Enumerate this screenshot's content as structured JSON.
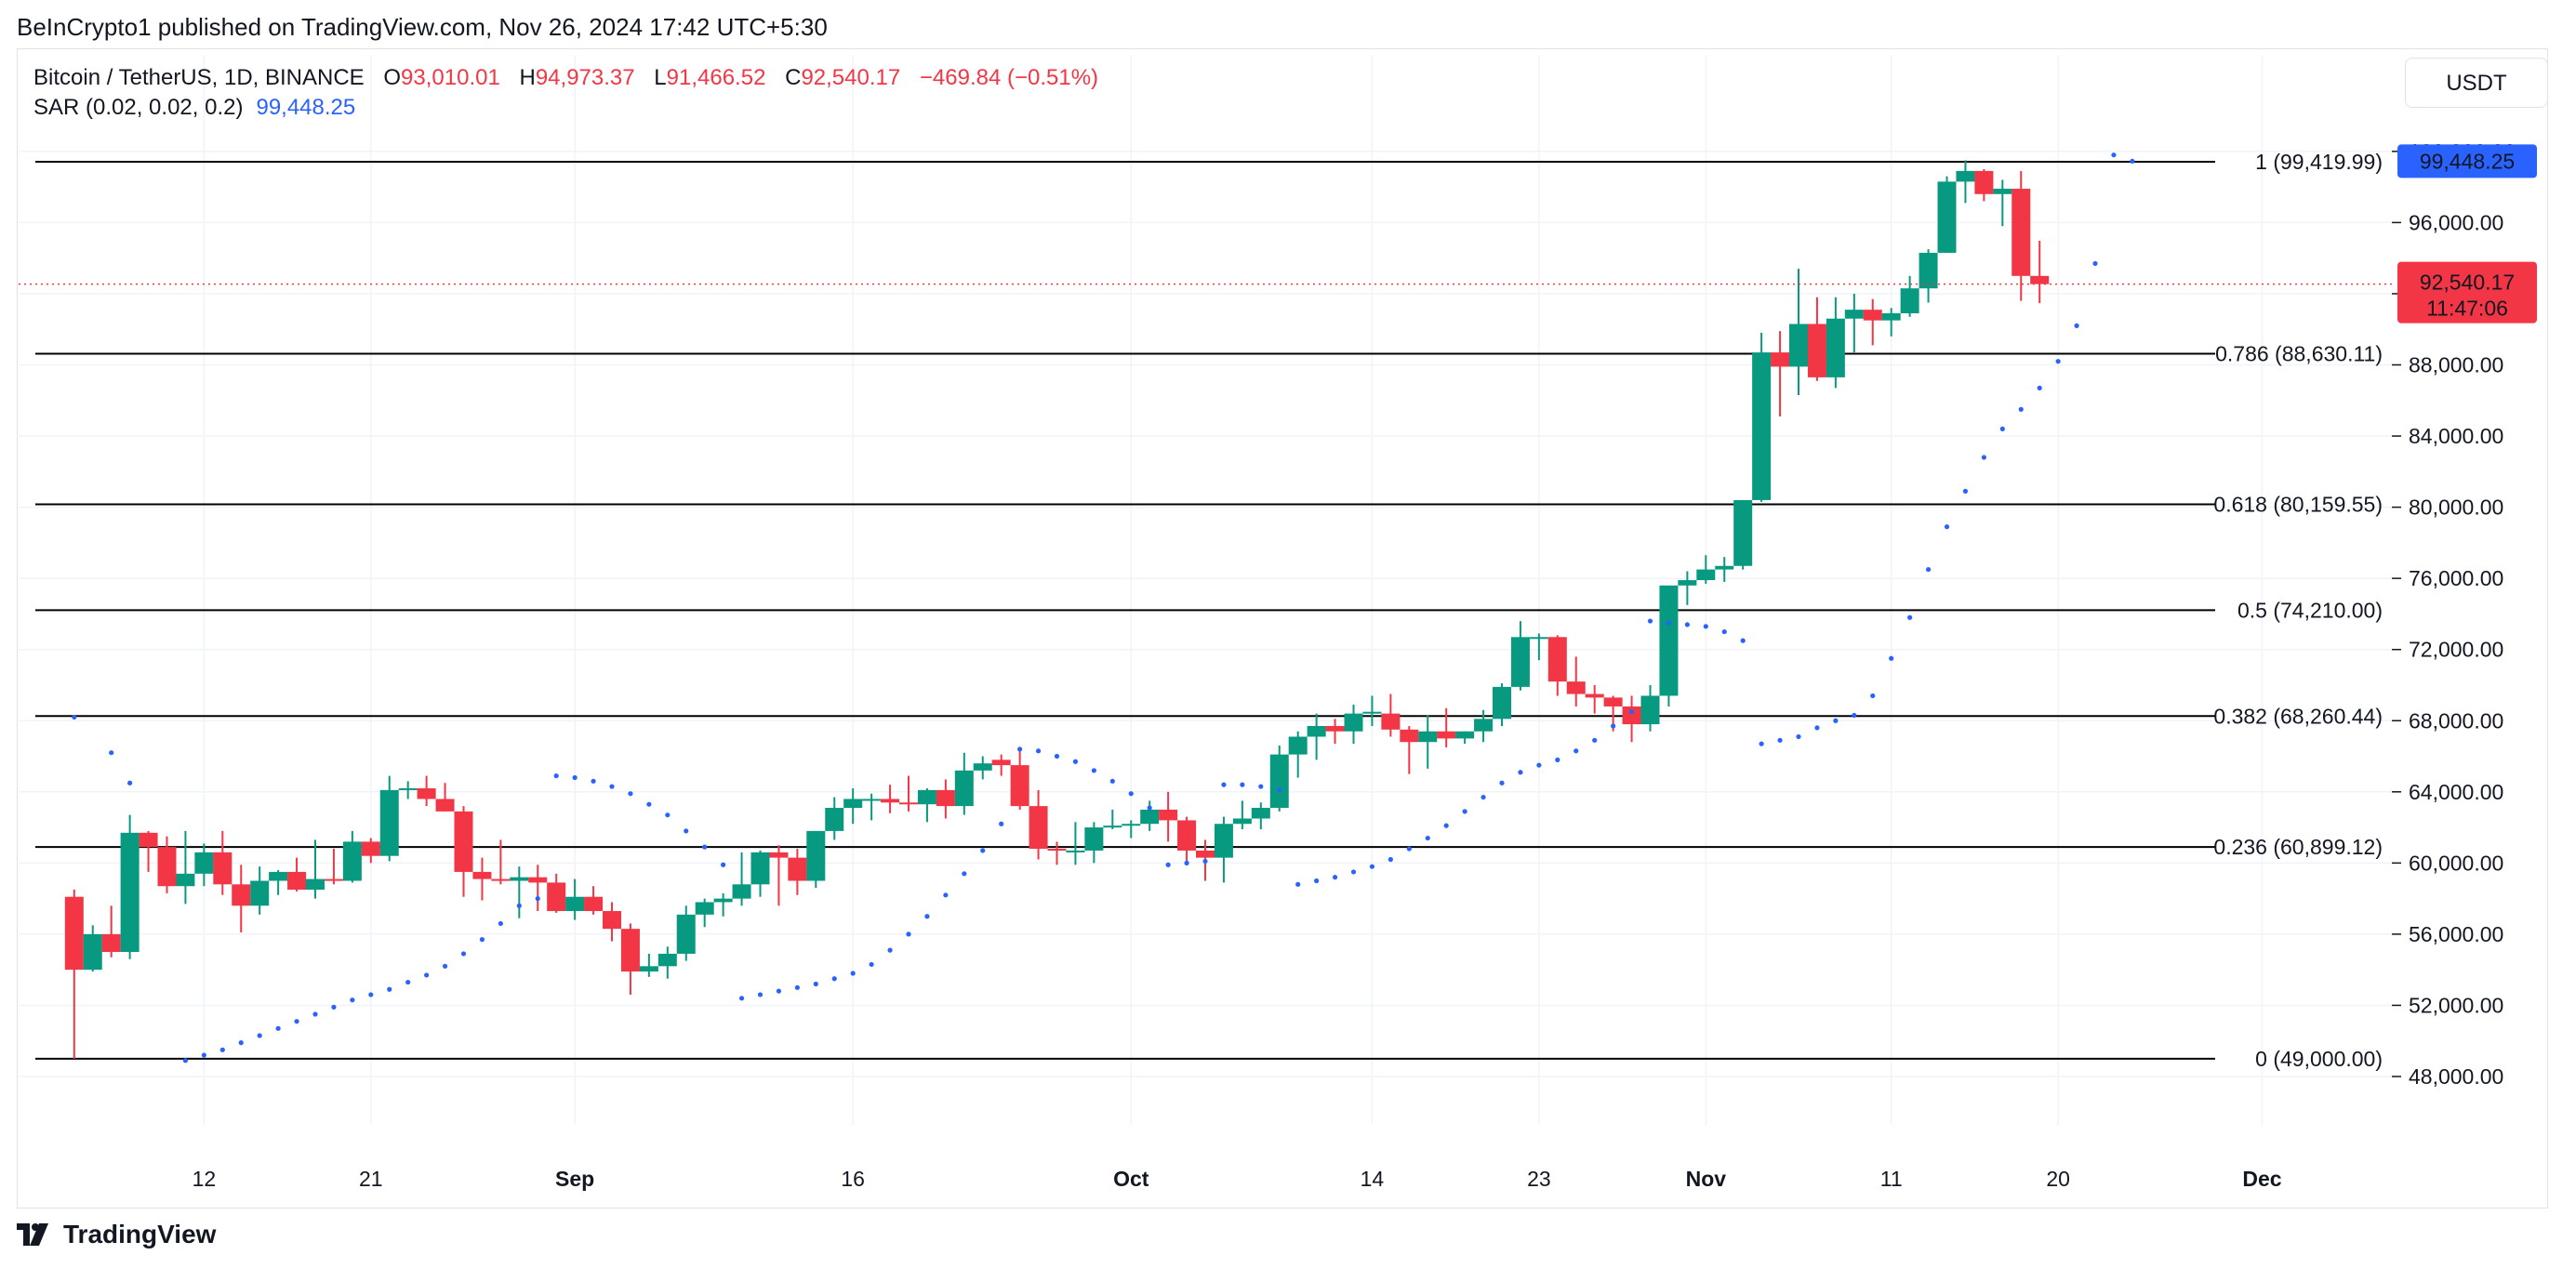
{
  "header": {
    "published_by": "BeInCrypto1 published on TradingView.com, Nov 26, 2024 17:42 UTC+5:30"
  },
  "legend": {
    "symbol": "Bitcoin / TetherUS, 1D, BINANCE",
    "o_label": "O",
    "o_value": "93,010.01",
    "h_label": "H",
    "h_value": "94,973.37",
    "l_label": "L",
    "l_value": "91,466.52",
    "c_label": "C",
    "c_value": "92,540.17",
    "change": "−469.84 (−0.51%)",
    "sar_label": "SAR (0.02, 0.02, 0.2)",
    "sar_value": "99,448.25"
  },
  "toolbar": {
    "currency": "USDT"
  },
  "footer": {
    "logo_text": "TradingView"
  },
  "colors": {
    "up": "#089981",
    "down": "#f23645",
    "sar": "#2962ff",
    "grid": "#f0f3fa",
    "fib_line": "#000000",
    "price_line": "#f23645"
  },
  "chart_data": {
    "type": "candlestick",
    "title": "Bitcoin / TetherUS, 1D, BINANCE",
    "ylim": [
      44000,
      101000
    ],
    "y_ticks": [
      "48,000.00",
      "52,000.00",
      "56,000.00",
      "60,000.00",
      "64,000.00",
      "68,000.00",
      "72,000.00",
      "76,000.00",
      "80,000.00",
      "84,000.00",
      "88,000.00",
      "92,000.00",
      "96,000.00",
      "100,000.00"
    ],
    "x_ticks": [
      {
        "label": "12",
        "date": "2024-08-12",
        "bold": false
      },
      {
        "label": "21",
        "date": "2024-08-21",
        "bold": false
      },
      {
        "label": "Sep",
        "date": "2024-09-01",
        "bold": true
      },
      {
        "label": "16",
        "date": "2024-09-16",
        "bold": false
      },
      {
        "label": "Oct",
        "date": "2024-10-01",
        "bold": true
      },
      {
        "label": "14",
        "date": "2024-10-14",
        "bold": false
      },
      {
        "label": "23",
        "date": "2024-10-23",
        "bold": false
      },
      {
        "label": "Nov",
        "date": "2024-11-01",
        "bold": true
      },
      {
        "label": "11",
        "date": "2024-11-11",
        "bold": false
      },
      {
        "label": "20",
        "date": "2024-11-20",
        "bold": false
      },
      {
        "label": "Dec",
        "date": "2024-12-01",
        "bold": true
      }
    ],
    "x_range": [
      "2024-08-02",
      "2024-12-08"
    ],
    "first_date": "2024-08-05",
    "fib_levels": [
      {
        "label": "1 (99,419.99)",
        "value": 99419.99
      },
      {
        "label": "0.786 (88,630.11)",
        "value": 88630.11
      },
      {
        "label": "0.618 (80,159.55)",
        "value": 80159.55
      },
      {
        "label": "0.5 (74,210.00)",
        "value": 74210.0
      },
      {
        "label": "0.382 (68,260.44)",
        "value": 68260.44
      },
      {
        "label": "0.236 (60,899.12)",
        "value": 60899.12
      },
      {
        "label": "0 (49,000.00)",
        "value": 49000.0
      }
    ],
    "last_price": {
      "value": 92540.17,
      "label": "92,540.17",
      "countdown": "11:47:06"
    },
    "sar_badge": {
      "value": 99448.25,
      "label": "99,448.25"
    },
    "ohlc": [
      [
        58100,
        58500,
        49000,
        54000
      ],
      [
        54000,
        56500,
        53900,
        56000
      ],
      [
        56000,
        57600,
        54700,
        55000
      ],
      [
        55000,
        62700,
        54600,
        61700
      ],
      [
        61700,
        61800,
        59500,
        60900
      ],
      [
        60900,
        61500,
        58300,
        58700
      ],
      [
        58700,
        61800,
        57700,
        59400
      ],
      [
        59400,
        61100,
        58700,
        60600
      ],
      [
        60600,
        61800,
        58200,
        58800
      ],
      [
        58800,
        59900,
        56100,
        57600
      ],
      [
        57600,
        59800,
        57100,
        59000
      ],
      [
        59000,
        59600,
        58200,
        59500
      ],
      [
        59500,
        60300,
        58400,
        58500
      ],
      [
        58500,
        61300,
        58000,
        59100
      ],
      [
        59100,
        60800,
        58800,
        59000
      ],
      [
        59000,
        61800,
        58900,
        61200
      ],
      [
        61200,
        61400,
        60000,
        60400
      ],
      [
        60400,
        64900,
        60100,
        64100
      ],
      [
        64100,
        64600,
        63600,
        64200
      ],
      [
        64200,
        64900,
        63200,
        63600
      ],
      [
        63600,
        64500,
        62900,
        62900
      ],
      [
        62900,
        63200,
        58100,
        59500
      ],
      [
        59500,
        60300,
        57900,
        59100
      ],
      [
        59100,
        61300,
        58800,
        59000
      ],
      [
        59000,
        59800,
        56900,
        59200
      ],
      [
        59200,
        59900,
        57300,
        58900
      ],
      [
        58900,
        59400,
        57200,
        57300
      ],
      [
        57300,
        59100,
        56800,
        58100
      ],
      [
        58100,
        58700,
        57100,
        57300
      ],
      [
        57300,
        57800,
        55600,
        56300
      ],
      [
        56300,
        56600,
        52600,
        53900
      ],
      [
        53900,
        54900,
        53600,
        54200
      ],
      [
        54200,
        55300,
        53500,
        54900
      ],
      [
        54900,
        57600,
        54500,
        57100
      ],
      [
        57100,
        58000,
        56400,
        57800
      ],
      [
        57800,
        58300,
        57000,
        58000
      ],
      [
        58000,
        60600,
        57600,
        58800
      ],
      [
        58800,
        60700,
        58100,
        60600
      ],
      [
        60600,
        61000,
        57600,
        60300
      ],
      [
        60300,
        60800,
        58200,
        59000
      ],
      [
        59000,
        61500,
        58600,
        61800
      ],
      [
        61800,
        63700,
        61300,
        63100
      ],
      [
        63100,
        64200,
        62200,
        63600
      ],
      [
        63600,
        63900,
        62400,
        63600
      ],
      [
        63600,
        64400,
        62800,
        63400
      ],
      [
        63400,
        64900,
        62900,
        63300
      ],
      [
        63300,
        64200,
        62300,
        64100
      ],
      [
        64100,
        64700,
        62500,
        63200
      ],
      [
        63200,
        66200,
        62700,
        65200
      ],
      [
        65200,
        66000,
        64700,
        65600
      ],
      [
        65800,
        66100,
        64900,
        65500
      ],
      [
        65500,
        66500,
        63000,
        63200
      ],
      [
        63200,
        64100,
        60200,
        60800
      ],
      [
        60800,
        61200,
        59900,
        60700
      ],
      [
        60700,
        62300,
        59900,
        60700
      ],
      [
        60700,
        62300,
        60000,
        62000
      ],
      [
        62000,
        63000,
        61900,
        62100
      ],
      [
        62100,
        62400,
        61400,
        62200
      ],
      [
        62200,
        63500,
        61800,
        63000
      ],
      [
        63000,
        64000,
        61200,
        62400
      ],
      [
        62400,
        62600,
        60100,
        60700
      ],
      [
        60700,
        61300,
        59000,
        60300
      ],
      [
        60300,
        62600,
        58900,
        62200
      ],
      [
        62200,
        63500,
        61900,
        62500
      ],
      [
        62500,
        63400,
        61900,
        63100
      ],
      [
        63100,
        66600,
        62900,
        66100
      ],
      [
        66100,
        67400,
        64800,
        67100
      ],
      [
        67100,
        68400,
        65800,
        67700
      ],
      [
        67700,
        68100,
        66700,
        67400
      ],
      [
        67400,
        68900,
        66700,
        68400
      ],
      [
        68400,
        69400,
        67700,
        68500
      ],
      [
        68400,
        69500,
        67100,
        67500
      ],
      [
        67500,
        67700,
        65000,
        66800
      ],
      [
        66800,
        68300,
        65300,
        67400
      ],
      [
        67400,
        68700,
        66500,
        67000
      ],
      [
        67000,
        67400,
        66700,
        67400
      ],
      [
        67400,
        68600,
        66800,
        68100
      ],
      [
        68100,
        70100,
        67700,
        69900
      ],
      [
        69900,
        73600,
        69700,
        72700
      ],
      [
        72700,
        72900,
        71400,
        72700
      ],
      [
        72700,
        72800,
        69400,
        70200
      ],
      [
        70200,
        71600,
        68800,
        69500
      ],
      [
        69500,
        70000,
        68400,
        69300
      ],
      [
        69300,
        69400,
        67400,
        68800
      ],
      [
        68800,
        69400,
        66800,
        67800
      ],
      [
        67800,
        70000,
        67400,
        69400
      ],
      [
        69400,
        75500,
        68800,
        75600
      ],
      [
        75600,
        76400,
        74500,
        75900
      ],
      [
        75900,
        77300,
        75700,
        76500
      ],
      [
        76500,
        77200,
        75800,
        76700
      ],
      [
        76700,
        80000,
        76500,
        80400
      ],
      [
        80400,
        89800,
        80300,
        88700
      ],
      [
        88700,
        89900,
        85100,
        87900
      ],
      [
        87900,
        93400,
        86300,
        90300
      ],
      [
        90300,
        91800,
        87100,
        87300
      ],
      [
        87300,
        91800,
        86700,
        90600
      ],
      [
        90600,
        92000,
        88700,
        91100
      ],
      [
        91100,
        91700,
        89100,
        90500
      ],
      [
        90500,
        91200,
        89600,
        90900
      ],
      [
        90900,
        93000,
        90700,
        92300
      ],
      [
        92300,
        94500,
        91500,
        94300
      ],
      [
        94300,
        98600,
        94300,
        98300
      ],
      [
        98300,
        99500,
        97100,
        98900
      ],
      [
        98900,
        99000,
        97200,
        97600
      ],
      [
        97600,
        98400,
        95800,
        97900
      ],
      [
        97900,
        98900,
        91600,
        93000
      ],
      [
        93000,
        94973.37,
        91466.52,
        92540.17
      ]
    ],
    "sar": [
      [
        0,
        68200
      ],
      [
        2,
        66200
      ],
      [
        3,
        64500
      ],
      [
        6,
        48900
      ],
      [
        7,
        49200
      ],
      [
        8,
        49500
      ],
      [
        9,
        49900
      ],
      [
        10,
        50300
      ],
      [
        11,
        50700
      ],
      [
        12,
        51100
      ],
      [
        13,
        51500
      ],
      [
        14,
        51900
      ],
      [
        15,
        52300
      ],
      [
        16,
        52600
      ],
      [
        17,
        52900
      ],
      [
        18,
        53300
      ],
      [
        19,
        53700
      ],
      [
        20,
        54200
      ],
      [
        21,
        54900
      ],
      [
        22,
        55700
      ],
      [
        23,
        56600
      ],
      [
        24,
        57600
      ],
      [
        25,
        58000
      ],
      [
        26,
        64900
      ],
      [
        27,
        64800
      ],
      [
        28,
        64600
      ],
      [
        29,
        64300
      ],
      [
        30,
        63900
      ],
      [
        31,
        63300
      ],
      [
        32,
        62700
      ],
      [
        33,
        61800
      ],
      [
        34,
        60900
      ],
      [
        35,
        59900
      ],
      [
        36,
        52400
      ],
      [
        37,
        52600
      ],
      [
        38,
        52800
      ],
      [
        39,
        53000
      ],
      [
        40,
        53200
      ],
      [
        41,
        53500
      ],
      [
        42,
        53800
      ],
      [
        43,
        54300
      ],
      [
        44,
        55100
      ],
      [
        45,
        56000
      ],
      [
        46,
        57000
      ],
      [
        47,
        58200
      ],
      [
        48,
        59400
      ],
      [
        49,
        60700
      ],
      [
        50,
        62200
      ],
      [
        51,
        66400
      ],
      [
        52,
        66300
      ],
      [
        53,
        66000
      ],
      [
        54,
        65700
      ],
      [
        55,
        65200
      ],
      [
        56,
        64600
      ],
      [
        57,
        63900
      ],
      [
        58,
        63100
      ],
      [
        59,
        59900
      ],
      [
        60,
        60000
      ],
      [
        61,
        60100
      ],
      [
        62,
        64400
      ],
      [
        63,
        64400
      ],
      [
        64,
        64300
      ],
      [
        65,
        64100
      ],
      [
        66,
        58800
      ],
      [
        67,
        59000
      ],
      [
        68,
        59200
      ],
      [
        69,
        59500
      ],
      [
        70,
        59800
      ],
      [
        71,
        60200
      ],
      [
        72,
        60800
      ],
      [
        73,
        61400
      ],
      [
        74,
        62100
      ],
      [
        75,
        62900
      ],
      [
        76,
        63700
      ],
      [
        77,
        64500
      ],
      [
        78,
        65100
      ],
      [
        79,
        65500
      ],
      [
        80,
        65800
      ],
      [
        81,
        66300
      ],
      [
        82,
        66900
      ],
      [
        83,
        67700
      ],
      [
        84,
        68500
      ],
      [
        85,
        73600
      ],
      [
        86,
        73500
      ],
      [
        87,
        73400
      ],
      [
        88,
        73300
      ],
      [
        89,
        73000
      ],
      [
        90,
        72500
      ],
      [
        91,
        66700
      ],
      [
        92,
        66900
      ],
      [
        93,
        67100
      ],
      [
        94,
        67600
      ],
      [
        95,
        68000
      ],
      [
        96,
        68300
      ],
      [
        97,
        69400
      ],
      [
        98,
        71500
      ],
      [
        99,
        73800
      ],
      [
        100,
        76500
      ],
      [
        101,
        78900
      ],
      [
        102,
        80900
      ],
      [
        103,
        82800
      ],
      [
        104,
        84400
      ],
      [
        105,
        85500
      ],
      [
        106,
        86700
      ],
      [
        107,
        88200
      ],
      [
        108,
        90200
      ],
      [
        109,
        93700
      ],
      [
        110,
        99800
      ],
      [
        111,
        99448.25
      ]
    ]
  }
}
